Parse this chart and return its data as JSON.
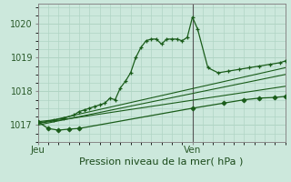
{
  "xlabel": "Pression niveau de la mer( hPa )",
  "bg_color": "#cce8dc",
  "plot_bg_color": "#cce8dc",
  "grid_color": "#b0d4c4",
  "line_color": "#1a5c1a",
  "ylim": [
    1016.5,
    1020.6
  ],
  "xlim": [
    0,
    48
  ],
  "yticks": [
    1017,
    1018,
    1019,
    1020
  ],
  "xtick_labels": [
    "Jeu",
    "Ven"
  ],
  "xtick_positions": [
    0,
    30
  ],
  "vline_x": 30,
  "series": [
    {
      "x": [
        0,
        3,
        5,
        7,
        8,
        9,
        10,
        11,
        12,
        13,
        14,
        15,
        16,
        17,
        18,
        19,
        20,
        21,
        22,
        23,
        24,
        25,
        26,
        27,
        28,
        29,
        30,
        31,
        33,
        35,
        37,
        39,
        41,
        43,
        45,
        47,
        48
      ],
      "y": [
        1017.1,
        1017.15,
        1017.2,
        1017.3,
        1017.4,
        1017.45,
        1017.5,
        1017.55,
        1017.6,
        1017.65,
        1017.8,
        1017.75,
        1018.1,
        1018.3,
        1018.55,
        1019.0,
        1019.3,
        1019.5,
        1019.55,
        1019.55,
        1019.4,
        1019.55,
        1019.55,
        1019.55,
        1019.5,
        1019.6,
        1020.2,
        1019.85,
        1018.7,
        1018.55,
        1018.6,
        1018.65,
        1018.7,
        1018.75,
        1018.8,
        1018.85,
        1018.9
      ],
      "marker": "+"
    },
    {
      "x": [
        0,
        48
      ],
      "y": [
        1017.05,
        1018.7
      ],
      "marker": null
    },
    {
      "x": [
        0,
        48
      ],
      "y": [
        1017.0,
        1018.5
      ],
      "marker": null
    },
    {
      "x": [
        0,
        48
      ],
      "y": [
        1017.05,
        1018.15
      ],
      "marker": null
    },
    {
      "x": [
        0,
        2,
        4,
        6,
        8,
        30,
        36,
        40,
        43,
        46,
        48
      ],
      "y": [
        1017.1,
        1016.9,
        1016.85,
        1016.88,
        1016.9,
        1017.5,
        1017.65,
        1017.75,
        1017.8,
        1017.82,
        1017.85
      ],
      "marker": "D"
    }
  ]
}
